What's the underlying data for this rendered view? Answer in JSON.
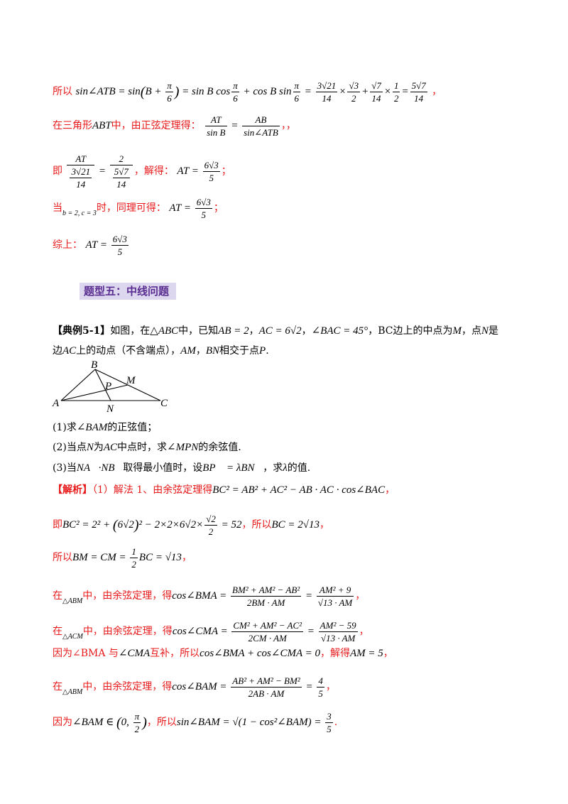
{
  "lines": {
    "l1_prefix": "所以",
    "l2_prefix": "在三角形",
    "l2_tri": "ABT",
    "l2_mid": "中，由正弦定理得：",
    "l2_suffix": "，，",
    "l3_prefix": "即",
    "l3_mid": "，解得：",
    "l3_suffix": "；",
    "l4_prefix": "当",
    "l4_cond": "b = 2, c = 3",
    "l4_mid": "时，同理可得：",
    "l4_suffix": "；",
    "l5_prefix": "综上："
  },
  "heading": "题型五：中线问题",
  "example": {
    "tag": "【典例5-1】",
    "text1": "如图，在",
    "text2": "中，已知",
    "text3": "BC边上的中点为",
    "text4": "，点",
    "text5": "是",
    "text6": "边",
    "text7": "上的动点（不含端点），",
    "text8": "相交于点",
    "q1a": "(1)求",
    "q1b": "的正弦值；",
    "q2a": "(2)当点",
    "q2b": "为",
    "q2c": "中点时，求",
    "q2d": "的余弦值.",
    "q3a": "(3)当",
    "q3b": "取得最小值时，设",
    "q3c": "，求",
    "q3d": "的值."
  },
  "figure": {
    "labels": [
      "A",
      "B",
      "C",
      "M",
      "N",
      "P"
    ]
  },
  "solution": {
    "tag": "【解析】",
    "s1": "（1）解法 1、由余弦定理得",
    "s2a": "即",
    "s2b": "，所以",
    "s3a": "所以",
    "s4a": "在",
    "s4b": "中，由余弦定理，得",
    "s5a": "在",
    "s5b": "中，由余弦定理，得",
    "s6a": "因为",
    "s6b": "BMA 与",
    "s6c": "互补，所以",
    "s6d": "，解得",
    "s7a": "在",
    "s7b": "中，由余弦定理，得",
    "s8a": "因为",
    "s8b": "，所以"
  }
}
